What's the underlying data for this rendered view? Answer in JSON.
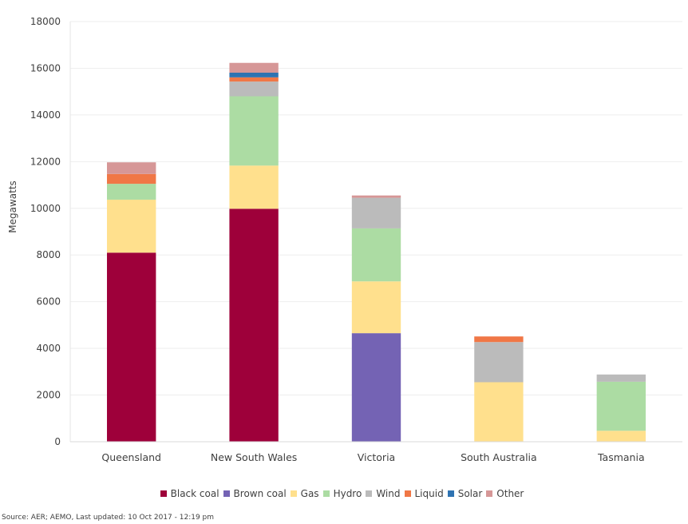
{
  "chart_data": {
    "type": "bar",
    "stacked": true,
    "categories": [
      "Queensland",
      "New South Wales",
      "Victoria",
      "South Australia",
      "Tasmania"
    ],
    "series": [
      {
        "name": "Black coal",
        "color": "#9e003a",
        "values": [
          8100,
          9980,
          0,
          0,
          0
        ]
      },
      {
        "name": "Brown coal",
        "color": "#7463b4",
        "values": [
          0,
          0,
          4650,
          0,
          0
        ]
      },
      {
        "name": "Gas",
        "color": "#ffe08d",
        "values": [
          2270,
          1850,
          2220,
          2550,
          470
        ]
      },
      {
        "name": "Hydro",
        "color": "#acdca3",
        "values": [
          680,
          2970,
          2270,
          0,
          2100
        ]
      },
      {
        "name": "Wind",
        "color": "#bbbbbb",
        "values": [
          0,
          630,
          1310,
          1720,
          310
        ]
      },
      {
        "name": "Liquid",
        "color": "#f07746",
        "values": [
          420,
          180,
          0,
          240,
          0
        ]
      },
      {
        "name": "Solar",
        "color": "#2e73b2",
        "values": [
          0,
          200,
          0,
          0,
          0
        ]
      },
      {
        "name": "Other",
        "color": "#d69797",
        "values": [
          500,
          420,
          100,
          0,
          0
        ]
      }
    ],
    "ylabel": "Megawatts",
    "ylim": [
      0,
      18000
    ],
    "yticks": [
      0,
      2000,
      4000,
      6000,
      8000,
      10000,
      12000,
      14000,
      16000,
      18000
    ],
    "grid": true,
    "legend_position": "bottom"
  },
  "source_text": "Source: AER; AEMO, Last updated: 10 Oct 2017 - 12:19 pm"
}
